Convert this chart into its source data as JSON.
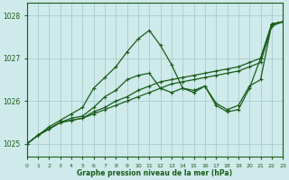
{
  "background_color": "#ceeaea",
  "grid_color": "#aed0d0",
  "line_color": "#1a5c1a",
  "xlim": [
    0,
    23
  ],
  "ylim": [
    1024.7,
    1028.3
  ],
  "yticks": [
    1025,
    1026,
    1027,
    1028
  ],
  "xticks": [
    0,
    1,
    2,
    3,
    4,
    5,
    6,
    7,
    8,
    9,
    10,
    11,
    12,
    13,
    14,
    15,
    16,
    17,
    18,
    19,
    20,
    21,
    22,
    23
  ],
  "xlabel": "Graphe pression niveau de la mer (hPa)",
  "series": [
    [
      1025.0,
      1025.2,
      1025.35,
      1025.5,
      1025.55,
      1025.6,
      1025.7,
      1025.8,
      1025.9,
      1026.0,
      1026.1,
      1026.2,
      1026.3,
      1026.4,
      1026.45,
      1026.5,
      1026.55,
      1026.6,
      1026.65,
      1026.7,
      1026.8,
      1026.9,
      1027.75,
      1027.85
    ],
    [
      1025.0,
      1025.2,
      1025.35,
      1025.5,
      1025.55,
      1025.6,
      1025.75,
      1025.85,
      1026.0,
      1026.1,
      1026.25,
      1026.35,
      1026.45,
      1026.5,
      1026.55,
      1026.6,
      1026.65,
      1026.7,
      1026.75,
      1026.8,
      1026.9,
      1027.0,
      1027.8,
      1027.85
    ],
    [
      1025.0,
      1025.2,
      1025.35,
      1025.5,
      1025.6,
      1025.65,
      1025.85,
      1026.1,
      1026.25,
      1026.5,
      1026.6,
      1026.65,
      1026.3,
      1026.2,
      1026.3,
      1026.25,
      1026.35,
      1025.95,
      1025.8,
      1025.9,
      1026.35,
      1026.5,
      1027.8,
      1027.85
    ],
    [
      1025.0,
      1025.2,
      1025.4,
      1025.55,
      1025.7,
      1025.85,
      1026.3,
      1026.55,
      1026.8,
      1027.15,
      1027.45,
      1027.65,
      1027.3,
      1026.85,
      1026.3,
      1026.2,
      1026.35,
      1025.9,
      1025.75,
      1025.8,
      1026.3,
      1027.0,
      1027.8,
      1027.85
    ]
  ]
}
